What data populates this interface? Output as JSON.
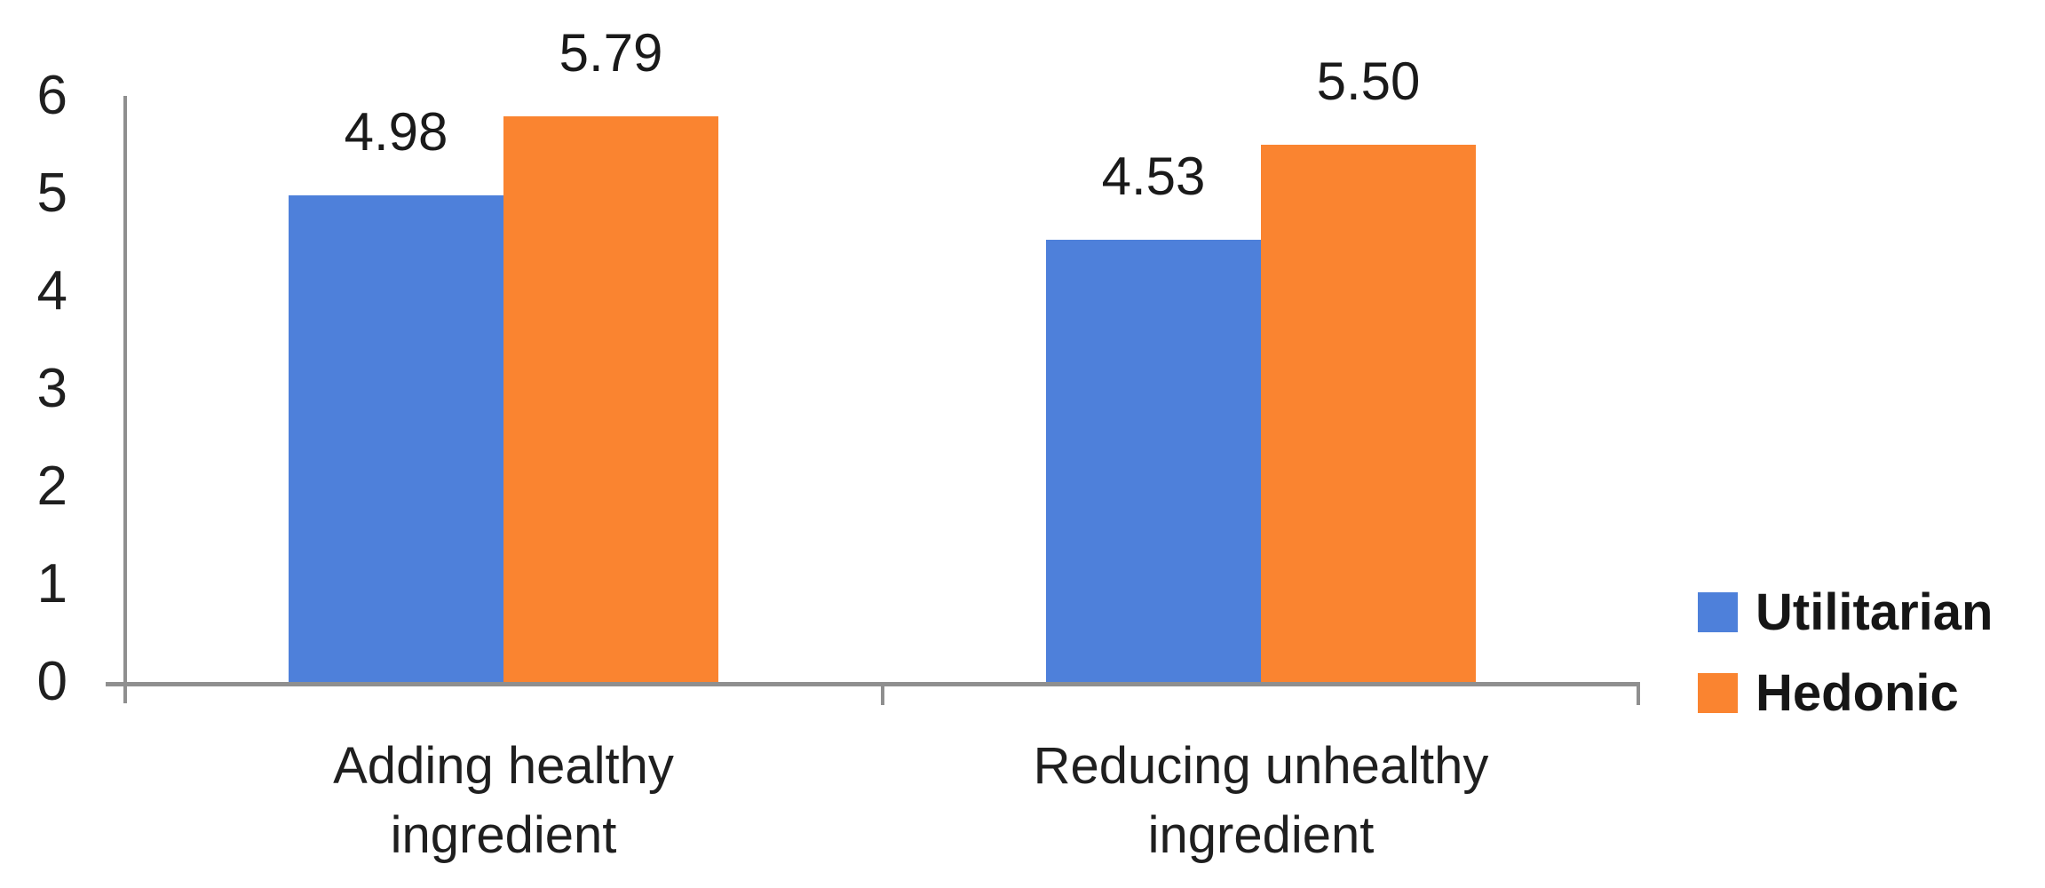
{
  "chart_data": {
    "type": "bar",
    "title": "",
    "xlabel": "",
    "ylabel": "",
    "categories": [
      "Adding healthy\ningredient",
      "Reducing unhealthy\ningredient"
    ],
    "series": [
      {
        "name": "Utilitarian",
        "color": "#4e80da",
        "values": [
          4.98,
          4.53
        ]
      },
      {
        "name": "Hedonic",
        "color": "#fa8430",
        "values": [
          5.79,
          5.5
        ]
      }
    ],
    "value_labels": [
      [
        "4.98",
        "4.53"
      ],
      [
        "5.79",
        "5.50"
      ]
    ],
    "ylim": [
      0,
      6
    ],
    "yticks": [
      0,
      1,
      2,
      3,
      4,
      5,
      6
    ],
    "grid": false,
    "legend_position": "right",
    "axis_color": "#8f8f8f",
    "text_color": "#1f1f1f"
  }
}
